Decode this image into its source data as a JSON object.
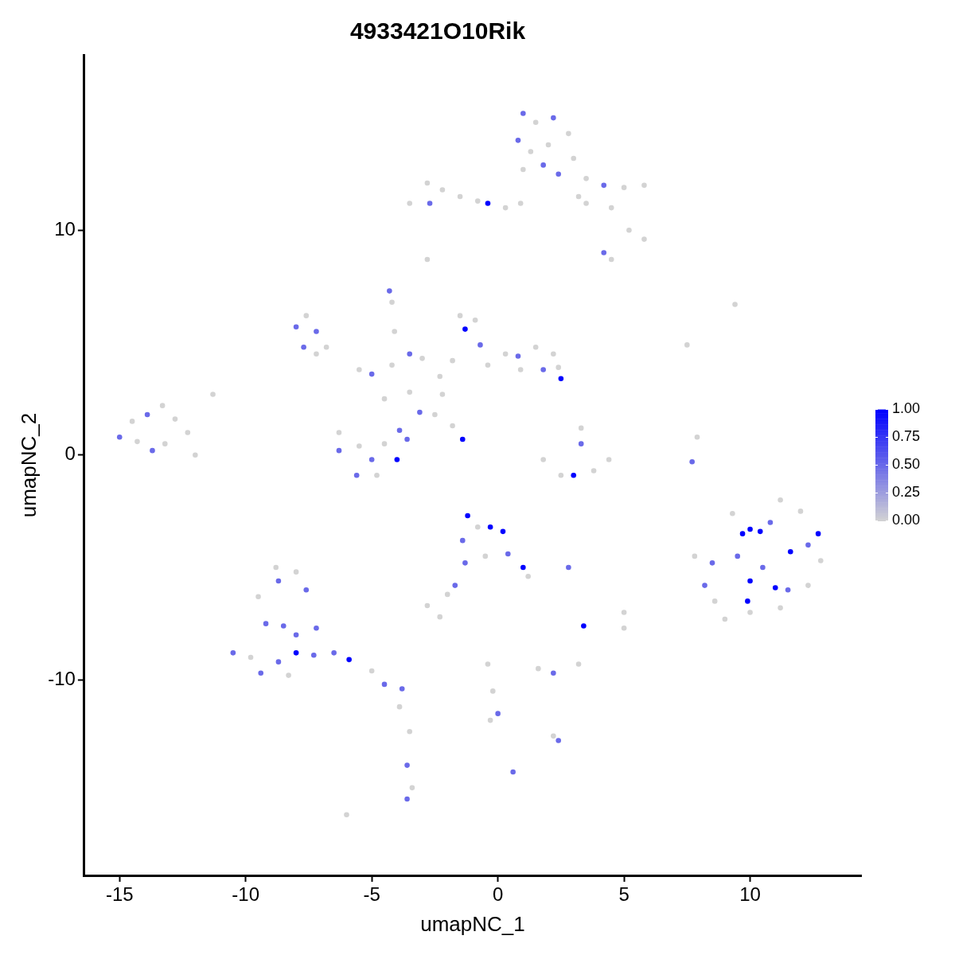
{
  "chart_data": {
    "type": "scatter",
    "title": "4933421O10Rik",
    "xlabel": "umapNC_1",
    "ylabel": "umapNC_2",
    "xlim": [
      -16.4,
      14.4
    ],
    "ylim": [
      -18.7,
      17.8
    ],
    "xticks": [
      -15,
      -10,
      -5,
      0,
      5,
      10
    ],
    "yticks": [
      -10,
      0,
      10
    ],
    "clim": [
      0,
      1
    ],
    "cticks": [
      {
        "value": 0,
        "label": "0.00"
      },
      {
        "value": 0.25,
        "label": "0.25"
      },
      {
        "value": 0.5,
        "label": "0.50"
      },
      {
        "value": 0.75,
        "label": "0.75"
      },
      {
        "value": 1,
        "label": "1.00"
      }
    ],
    "grid": false,
    "legend": false,
    "marker": "circle",
    "x": [
      1.0,
      1.5,
      2.2,
      0.8,
      1.3,
      2.0,
      2.8,
      3.0,
      1.8,
      1.0,
      2.4,
      3.5,
      4.2,
      5.0,
      5.8,
      3.5,
      4.5,
      5.2,
      5.8,
      4.2,
      4.5,
      3.2,
      -3.5,
      -2.8,
      -2.2,
      -2.7,
      -1.5,
      -0.8,
      -0.4,
      0.3,
      0.9,
      -2.8,
      -4.3,
      -4.2,
      -8.0,
      -7.6,
      -7.2,
      -7.7,
      -6.8,
      -7.2,
      -5.5,
      -5.0,
      -4.2,
      -3.5,
      -3.0,
      -4.5,
      -3.5,
      -2.2,
      -2.5,
      -3.1,
      -1.4,
      -1.8,
      -4.1,
      -2.3,
      -1.5,
      -0.9,
      -1.3,
      -0.7,
      -1.8,
      -0.4,
      0.3,
      0.8,
      1.5,
      2.2,
      2.4,
      1.8,
      2.5,
      0.9,
      -15.0,
      -14.5,
      -13.9,
      -13.3,
      -12.8,
      -12.3,
      -13.2,
      -14.3,
      -13.7,
      -12.0,
      -11.3,
      -6.3,
      -6.3,
      -5.6,
      -5.0,
      -4.5,
      -3.9,
      -4.0,
      -4.8,
      -5.5,
      -3.6,
      1.8,
      2.5,
      3.0,
      3.8,
      4.4,
      3.3,
      3.3,
      7.7,
      7.9,
      9.4,
      7.5,
      7.8,
      8.5,
      8.6,
      9.3,
      9.7,
      10.0,
      10.4,
      11.2,
      12.0,
      12.7,
      12.8,
      12.3,
      11.2,
      10.0,
      9.0,
      11.6,
      11.0,
      10.0,
      9.9,
      11.5,
      9.5,
      10.5,
      8.2,
      12.3,
      10.8,
      -1.2,
      -0.8,
      -0.3,
      0.2,
      -1.4,
      -0.5,
      0.4,
      1.0,
      -1.3,
      1.2,
      -1.7,
      -2.0,
      -2.8,
      -2.3,
      2.8,
      3.4,
      5.0,
      5.0,
      -10.5,
      -9.5,
      -8.8,
      -8.0,
      -7.6,
      -8.7,
      -9.2,
      -8.5,
      -8.0,
      -7.2,
      -9.8,
      -9.4,
      -8.7,
      -8.0,
      -7.3,
      -8.3,
      -6.5,
      -5.9,
      -5.0,
      -4.5,
      -3.8,
      -3.9,
      -3.5,
      -3.6,
      -3.4,
      -3.6,
      -6.0,
      -0.4,
      -0.2,
      0.0,
      -0.3,
      1.6,
      2.2,
      3.2,
      2.2,
      2.4,
      0.6
    ],
    "values": [
      15.2,
      14.8,
      15.0,
      14.0,
      13.5,
      13.8,
      14.3,
      13.2,
      12.9,
      12.7,
      12.5,
      12.3,
      12.0,
      11.9,
      12.0,
      11.2,
      11.0,
      10.0,
      9.6,
      9.0,
      8.7,
      11.5,
      11.2,
      12.1,
      11.8,
      11.2,
      11.5,
      11.3,
      11.2,
      11.0,
      11.2,
      8.7,
      7.3,
      6.8,
      5.7,
      6.2,
      5.5,
      4.8,
      4.8,
      4.5,
      3.8,
      3.6,
      4.0,
      4.5,
      4.3,
      2.5,
      2.8,
      2.7,
      1.8,
      1.9,
      0.7,
      1.3,
      5.5,
      3.5,
      6.2,
      6.0,
      5.6,
      4.9,
      4.2,
      4.0,
      4.5,
      4.4,
      4.8,
      4.5,
      3.9,
      3.8,
      3.4,
      3.8,
      0.8,
      1.5,
      1.8,
      2.2,
      1.6,
      1.0,
      0.5,
      0.6,
      0.2,
      0.0,
      2.7,
      1.0,
      0.2,
      -0.9,
      -0.2,
      0.5,
      1.1,
      -0.2,
      -0.9,
      0.4,
      0.7,
      -0.2,
      -0.9,
      -0.9,
      -0.7,
      -0.2,
      1.2,
      0.5,
      -0.3,
      0.8,
      6.7,
      4.9,
      -4.5,
      -4.8,
      -6.5,
      -2.6,
      -3.5,
      -3.3,
      -3.4,
      -2.0,
      -2.5,
      -3.5,
      -4.7,
      -5.8,
      -6.8,
      -7.0,
      -7.3,
      -4.3,
      -5.9,
      -5.6,
      -6.5,
      -6.0,
      -4.5,
      -5.0,
      -5.8,
      -4.0,
      -3.0,
      -2.7,
      -3.2,
      -3.2,
      -3.4,
      -3.8,
      -4.5,
      -4.4,
      -5.0,
      -4.8,
      -5.4,
      -5.8,
      -6.2,
      -6.7,
      -7.2,
      -5.0,
      -7.6,
      -7.0,
      -7.7,
      -8.8,
      -6.3,
      -5.0,
      -5.2,
      -6.0,
      -5.6,
      -7.5,
      -7.6,
      -8.0,
      -7.7,
      -9.0,
      -9.7,
      -9.2,
      -8.8,
      -8.9,
      -9.8,
      -8.8,
      -9.1,
      -9.6,
      -10.2,
      -10.4,
      -11.2,
      -12.3,
      -13.8,
      -14.8,
      -15.3,
      -16.0,
      -9.3,
      -10.5,
      -11.5,
      -11.8,
      -9.5,
      -9.7,
      -9.3,
      -12.5,
      -12.7,
      -14.1
    ],
    "cvalues": [
      0.5,
      0,
      0.5,
      0.5,
      0,
      0,
      0,
      0,
      0.5,
      0,
      0.5,
      0,
      0.5,
      0,
      0,
      0,
      0,
      0,
      0,
      0.5,
      0,
      0,
      0,
      0,
      0,
      0.5,
      0,
      0,
      1,
      0,
      0,
      0,
      0.5,
      0,
      0.5,
      0,
      0.5,
      0.5,
      0,
      0,
      0,
      0.5,
      0,
      0.5,
      0,
      0,
      0,
      0,
      0,
      0.5,
      1,
      0,
      0,
      0,
      0,
      0,
      1,
      0.5,
      0,
      0,
      0,
      0.5,
      0,
      0,
      0,
      0.5,
      1,
      0,
      0.5,
      0,
      0.5,
      0,
      0,
      0,
      0,
      0,
      0.5,
      0,
      0,
      0,
      0.5,
      0.5,
      0.5,
      0,
      0.5,
      1,
      0,
      0,
      0.5,
      0,
      0,
      1,
      0,
      0,
      0,
      0.5,
      0.5,
      0,
      0,
      0,
      0,
      0.5,
      0,
      0,
      1,
      1,
      1,
      0,
      0,
      1,
      0,
      0,
      0,
      0,
      0,
      1,
      1,
      1,
      1,
      0.5,
      0.5,
      0.5,
      0.5,
      0.5,
      0.5,
      1,
      0,
      1,
      1,
      0.5,
      0,
      0.5,
      1,
      0.5,
      0,
      0.5,
      0,
      0,
      0,
      0.5,
      1,
      0,
      0,
      0.5,
      0,
      0,
      0,
      0.5,
      0.5,
      0.5,
      0.5,
      0.5,
      0.5,
      0,
      0.5,
      0.5,
      1,
      0.5,
      0,
      0.5,
      1,
      0,
      0.5,
      0.5,
      0,
      0,
      0.5,
      0,
      0.5,
      0,
      0,
      0,
      0.5,
      0,
      0,
      0.5,
      0,
      0,
      0.5,
      0.5
    ]
  }
}
